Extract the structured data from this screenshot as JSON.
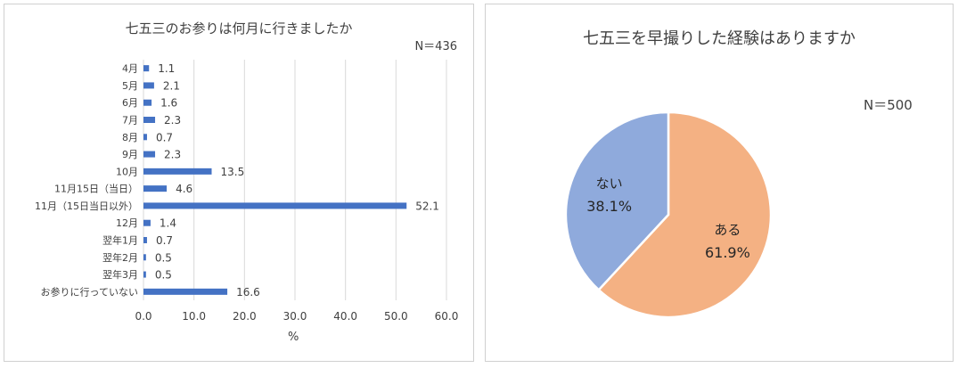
{
  "chart_data": [
    {
      "type": "bar",
      "orientation": "horizontal",
      "title": "七五三のお参りは何月に行きましたか",
      "n_label": "N＝436",
      "categories": [
        "4月",
        "5月",
        "6月",
        "7月",
        "8月",
        "9月",
        "10月",
        "11月15日（当日）",
        "11月（15日当日以外）",
        "12月",
        "翌年1月",
        "翌年2月",
        "翌年3月",
        "お参りに行っていない"
      ],
      "values": [
        1.1,
        2.1,
        1.6,
        2.3,
        0.7,
        2.3,
        13.5,
        4.6,
        52.1,
        1.4,
        0.7,
        0.5,
        0.5,
        16.6
      ],
      "value_labels": [
        "1.1",
        "2.1",
        "1.6",
        "2.3",
        "0.7",
        "2.3",
        "13.5",
        "4.6",
        "52.1",
        "1.4",
        "0.7",
        "0.5",
        "0.5",
        "16.6"
      ],
      "xlabel": "%",
      "xlim": [
        0,
        60
      ],
      "xticks": [
        "0.0",
        "10.0",
        "20.0",
        "30.0",
        "40.0",
        "50.0",
        "60.0"
      ],
      "grid": true,
      "bar_color": "#4472c4"
    },
    {
      "type": "pie",
      "title": "七五三を早撮りした経験はありますか",
      "n_label": "N＝500",
      "slices": [
        {
          "label": "ある",
          "value": 61.9,
          "value_label": "61.9%",
          "color": "#f4b183"
        },
        {
          "label": "ない",
          "value": 38.1,
          "value_label": "38.1%",
          "color": "#8faadc"
        }
      ]
    }
  ]
}
